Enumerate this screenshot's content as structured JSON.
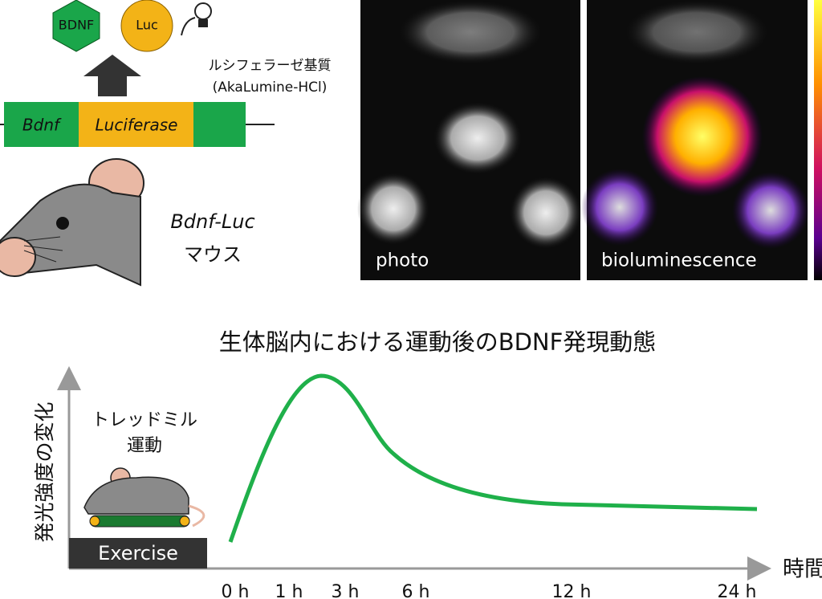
{
  "construct": {
    "protein_1": "BDNF",
    "protein_2": "Luc",
    "substrate": "ルシフェラーゼ基質",
    "substrate_name": "(AkaLumine-HCl)",
    "gene_1": "Bdnf",
    "gene_2": "Luciferase"
  },
  "mouse": {
    "line": "Bdnf-Luc",
    "label": "マウス"
  },
  "images": {
    "photo": "photo",
    "bioluminescence": "bioluminescence"
  },
  "graph": {
    "title": "生体脳内における運動後のBDNF発現動態",
    "y_label": "発光強度の変化",
    "x_label": "時間",
    "exercise_caption": [
      "トレッドミル",
      "運動"
    ],
    "exercise_box": "Exercise",
    "x_labels": [
      "0 h",
      "1 h",
      "3 h",
      "6 h",
      "12 h",
      "24 h"
    ]
  }
}
